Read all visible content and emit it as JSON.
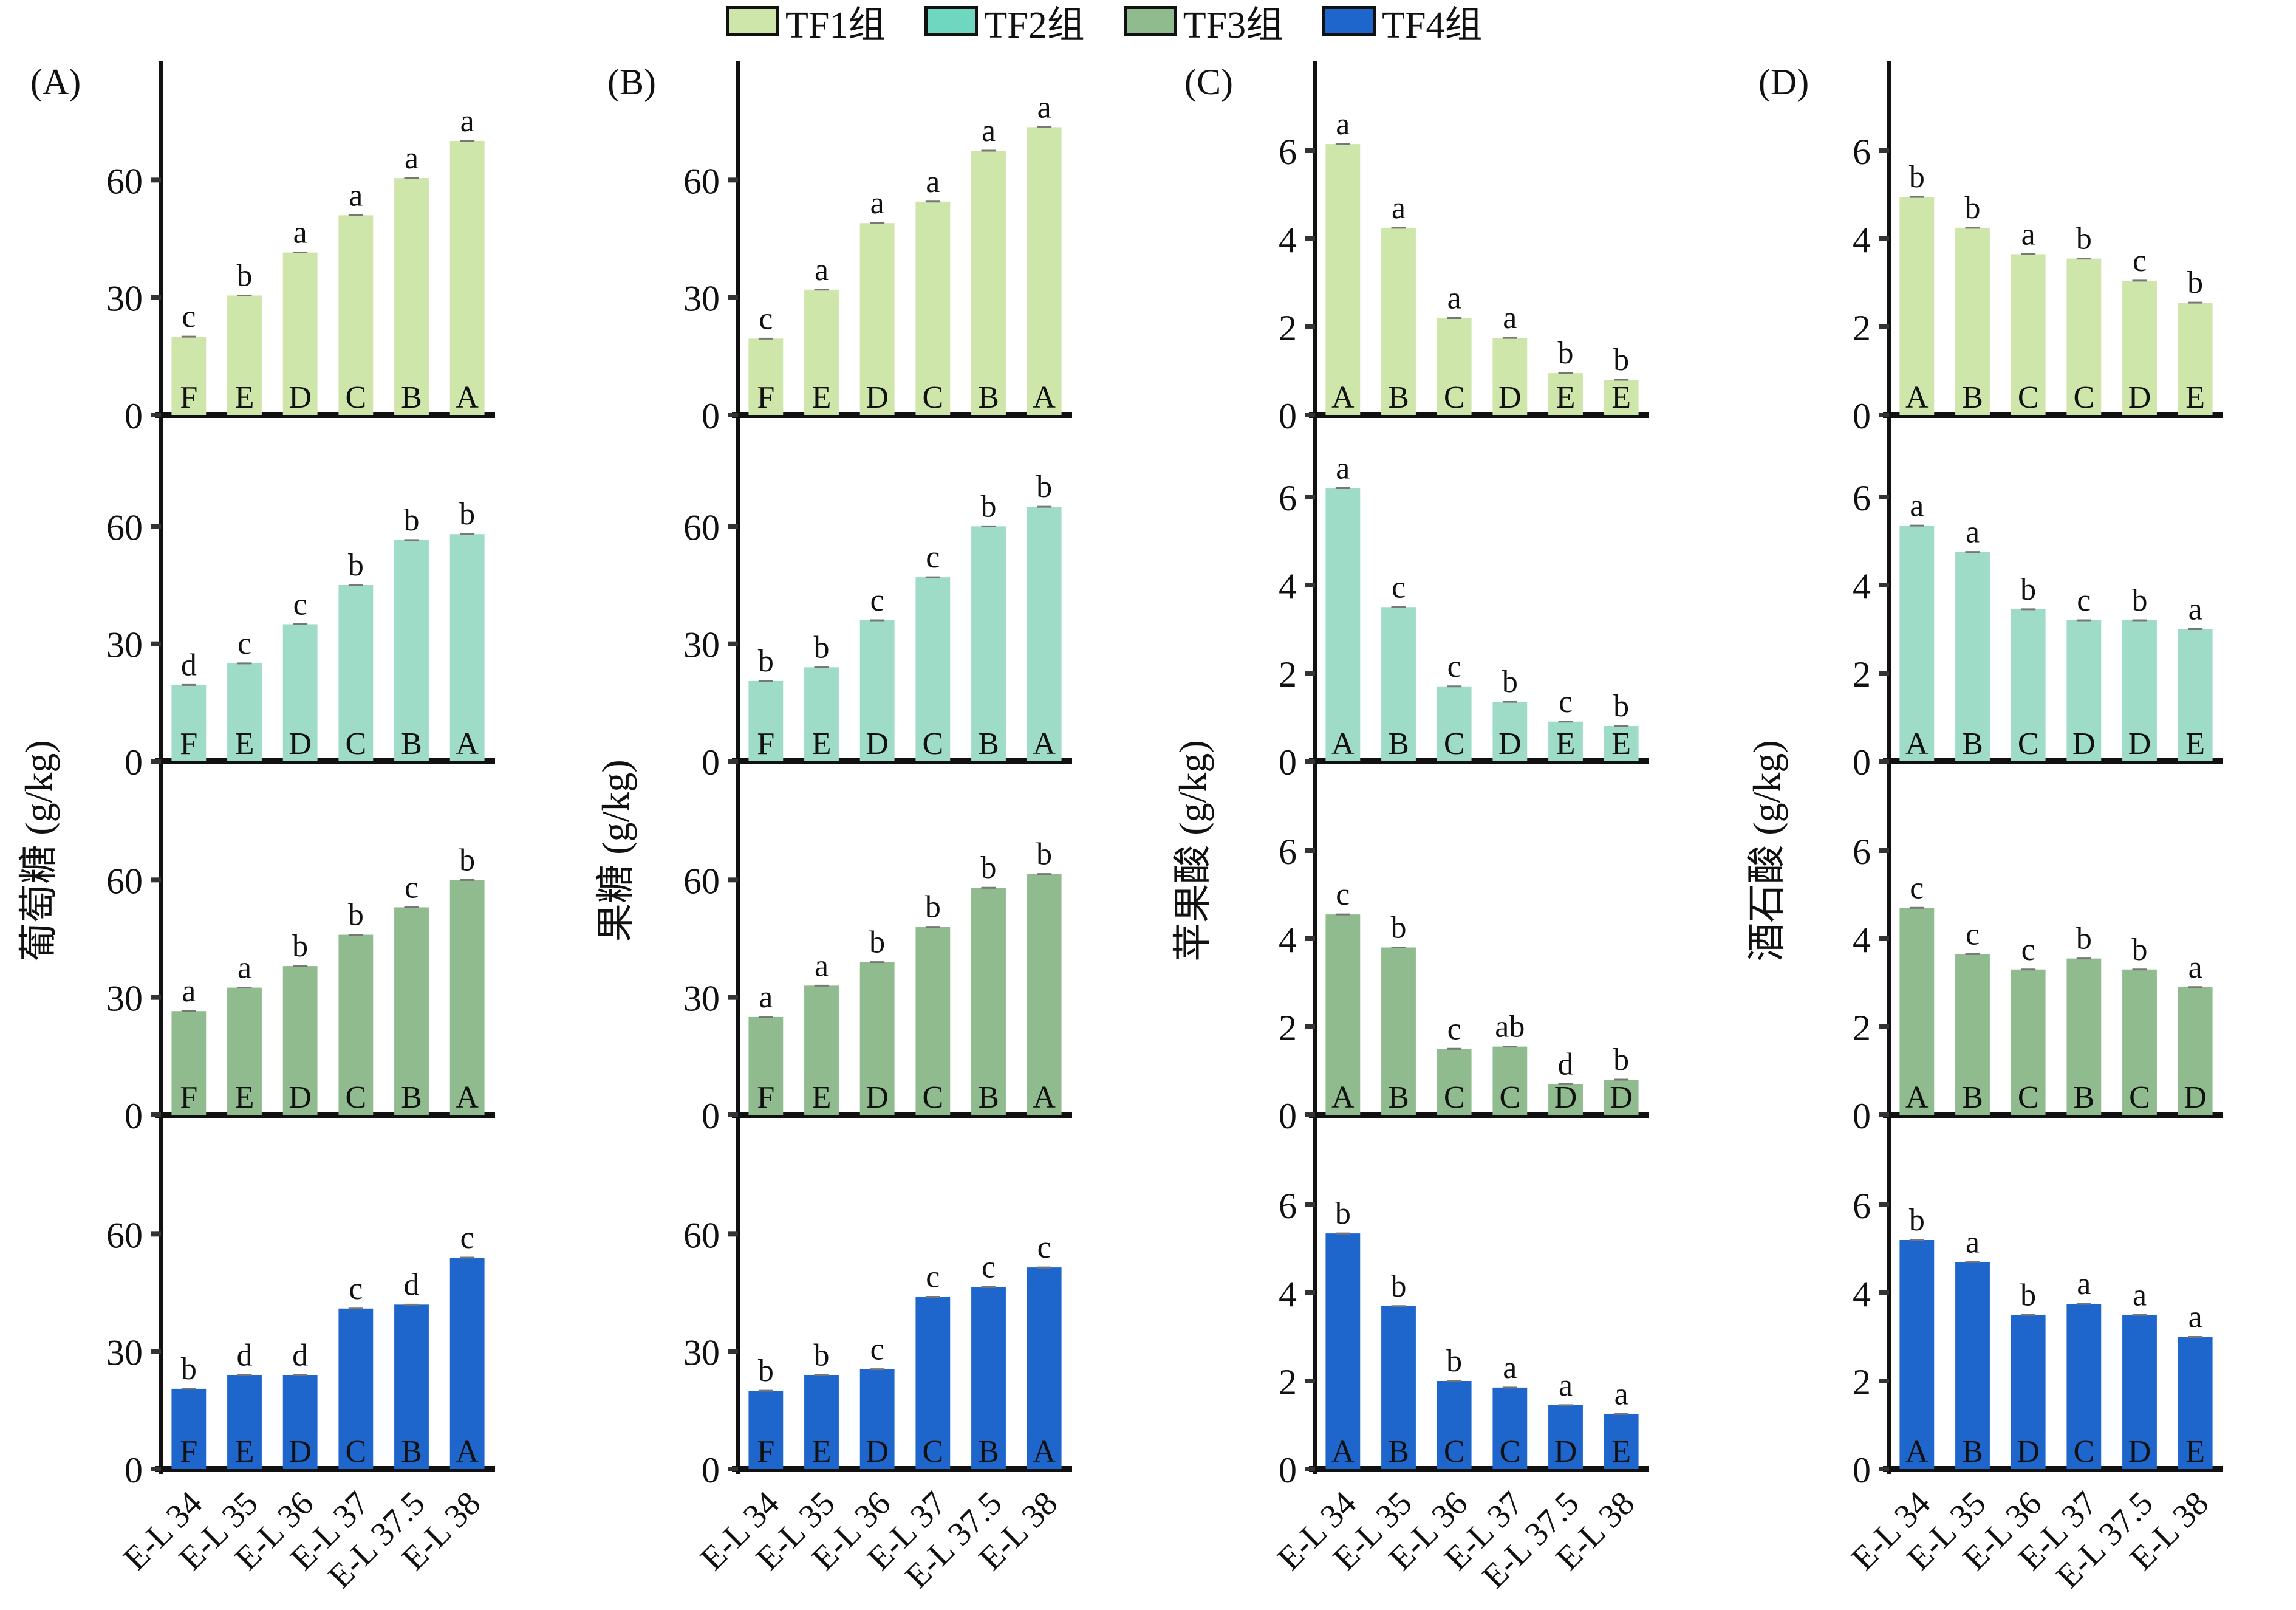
{
  "legend": [
    {
      "label": "TF1组",
      "color": "#cfe6ab"
    },
    {
      "label": "TF2组",
      "color": "#9fdcc8"
    },
    {
      "label": "TF3组",
      "color": "#8fbb8f"
    },
    {
      "label": "TF4组",
      "color": "#1f66cc"
    }
  ],
  "chart_data": [
    {
      "type": "bar",
      "panel": "(A)",
      "ylabel": "葡萄糖 (g/kg)",
      "categories": [
        "E-L 34",
        "E-L 35",
        "E-L 36",
        "E-L 37",
        "E-L 37.5",
        "E-L 38"
      ],
      "yticks": [
        0,
        30,
        60
      ],
      "ylim": [
        0,
        90
      ],
      "series": [
        {
          "name": "TF1组",
          "values": [
            20,
            30.5,
            41.5,
            51,
            60.5,
            70
          ],
          "top_letters": [
            "c",
            "b",
            "a",
            "a",
            "a",
            "a"
          ],
          "bottom_letters": [
            "F",
            "E",
            "D",
            "C",
            "B",
            "A"
          ]
        },
        {
          "name": "TF2组",
          "values": [
            19.5,
            25,
            35,
            45,
            56.5,
            58
          ],
          "top_letters": [
            "d",
            "c",
            "c",
            "b",
            "b",
            "b"
          ],
          "bottom_letters": [
            "F",
            "E",
            "D",
            "C",
            "B",
            "A"
          ]
        },
        {
          "name": "TF3组",
          "values": [
            26.5,
            32.5,
            38,
            46,
            53,
            60
          ],
          "top_letters": [
            "a",
            "a",
            "b",
            "b",
            "c",
            "b"
          ],
          "bottom_letters": [
            "F",
            "E",
            "D",
            "C",
            "B",
            "A"
          ]
        },
        {
          "name": "TF4组",
          "values": [
            20.5,
            24,
            24,
            41,
            42,
            54
          ],
          "top_letters": [
            "b",
            "d",
            "d",
            "c",
            "d",
            "c"
          ],
          "bottom_letters": [
            "F",
            "E",
            "D",
            "C",
            "B",
            "A"
          ]
        }
      ]
    },
    {
      "type": "bar",
      "panel": "(B)",
      "ylabel": "果糖 (g/kg)",
      "categories": [
        "E-L 34",
        "E-L 35",
        "E-L 36",
        "E-L 37",
        "E-L 37.5",
        "E-L 38"
      ],
      "yticks": [
        0,
        30,
        60
      ],
      "ylim": [
        0,
        90
      ],
      "series": [
        {
          "name": "TF1组",
          "values": [
            19.5,
            32,
            49,
            54.5,
            67.5,
            73.5
          ],
          "top_letters": [
            "c",
            "a",
            "a",
            "a",
            "a",
            "a"
          ],
          "bottom_letters": [
            "F",
            "E",
            "D",
            "C",
            "B",
            "A"
          ]
        },
        {
          "name": "TF2组",
          "values": [
            20.5,
            24,
            36,
            47,
            60,
            65
          ],
          "top_letters": [
            "b",
            "b",
            "c",
            "c",
            "b",
            "b"
          ],
          "bottom_letters": [
            "F",
            "E",
            "D",
            "C",
            "B",
            "A"
          ]
        },
        {
          "name": "TF3组",
          "values": [
            25,
            33,
            39,
            48,
            58,
            61.5
          ],
          "top_letters": [
            "a",
            "a",
            "b",
            "b",
            "b",
            "b"
          ],
          "bottom_letters": [
            "F",
            "E",
            "D",
            "C",
            "B",
            "A"
          ]
        },
        {
          "name": "TF4组",
          "values": [
            20,
            24,
            25.5,
            44,
            46.5,
            51.5
          ],
          "top_letters": [
            "b",
            "b",
            "c",
            "c",
            "c",
            "c"
          ],
          "bottom_letters": [
            "F",
            "E",
            "D",
            "C",
            "B",
            "A"
          ]
        }
      ]
    },
    {
      "type": "bar",
      "panel": "(C)",
      "ylabel": "苹果酸 (g/kg)",
      "categories": [
        "E-L 34",
        "E-L 35",
        "E-L 36",
        "E-L 37",
        "E-L 37.5",
        "E-L 38"
      ],
      "yticks": [
        0,
        2,
        4,
        6
      ],
      "ylim": [
        0,
        8
      ],
      "series": [
        {
          "name": "TF1组",
          "values": [
            6.15,
            4.25,
            2.2,
            1.75,
            0.95,
            0.8
          ],
          "top_letters": [
            "a",
            "a",
            "a",
            "a",
            "b",
            "b"
          ],
          "bottom_letters": [
            "A",
            "B",
            "C",
            "D",
            "E",
            "E"
          ]
        },
        {
          "name": "TF2组",
          "values": [
            6.2,
            3.5,
            1.7,
            1.35,
            0.9,
            0.8
          ],
          "top_letters": [
            "a",
            "c",
            "c",
            "b",
            "c",
            "b"
          ],
          "bottom_letters": [
            "A",
            "B",
            "C",
            "D",
            "E",
            "E"
          ]
        },
        {
          "name": "TF3组",
          "values": [
            4.55,
            3.8,
            1.5,
            1.55,
            0.7,
            0.8
          ],
          "top_letters": [
            "c",
            "b",
            "c",
            "ab",
            "d",
            "b"
          ],
          "bottom_letters": [
            "A",
            "B",
            "C",
            "C",
            "D",
            "D"
          ]
        },
        {
          "name": "TF4组",
          "values": [
            5.35,
            3.7,
            2.0,
            1.85,
            1.45,
            1.25
          ],
          "top_letters": [
            "b",
            "b",
            "b",
            "a",
            "a",
            "a"
          ],
          "bottom_letters": [
            "A",
            "B",
            "C",
            "C",
            "D",
            "E"
          ]
        }
      ]
    },
    {
      "type": "bar",
      "panel": "(D)",
      "ylabel": "酒石酸 (g/kg)",
      "categories": [
        "E-L 34",
        "E-L 35",
        "E-L 36",
        "E-L 37",
        "E-L 37.5",
        "E-L 38"
      ],
      "yticks": [
        0,
        2,
        4,
        6
      ],
      "ylim": [
        0,
        8
      ],
      "series": [
        {
          "name": "TF1组",
          "values": [
            4.95,
            4.25,
            3.65,
            3.55,
            3.05,
            2.55
          ],
          "top_letters": [
            "b",
            "b",
            "a",
            "b",
            "c",
            "b"
          ],
          "bottom_letters": [
            "A",
            "B",
            "C",
            "C",
            "D",
            "E"
          ]
        },
        {
          "name": "TF2组",
          "values": [
            5.35,
            4.75,
            3.45,
            3.2,
            3.2,
            3.0
          ],
          "top_letters": [
            "a",
            "a",
            "b",
            "c",
            "b",
            "a"
          ],
          "bottom_letters": [
            "A",
            "B",
            "C",
            "D",
            "D",
            "E"
          ]
        },
        {
          "name": "TF3组",
          "values": [
            4.7,
            3.65,
            3.3,
            3.55,
            3.3,
            2.9
          ],
          "top_letters": [
            "c",
            "c",
            "c",
            "b",
            "b",
            "a"
          ],
          "bottom_letters": [
            "A",
            "B",
            "C",
            "B",
            "C",
            "D"
          ]
        },
        {
          "name": "TF4组",
          "values": [
            5.2,
            4.7,
            3.5,
            3.75,
            3.5,
            3.0
          ],
          "top_letters": [
            "b",
            "a",
            "b",
            "a",
            "a",
            "a"
          ],
          "bottom_letters": [
            "A",
            "B",
            "D",
            "C",
            "D",
            "E"
          ]
        }
      ]
    }
  ]
}
